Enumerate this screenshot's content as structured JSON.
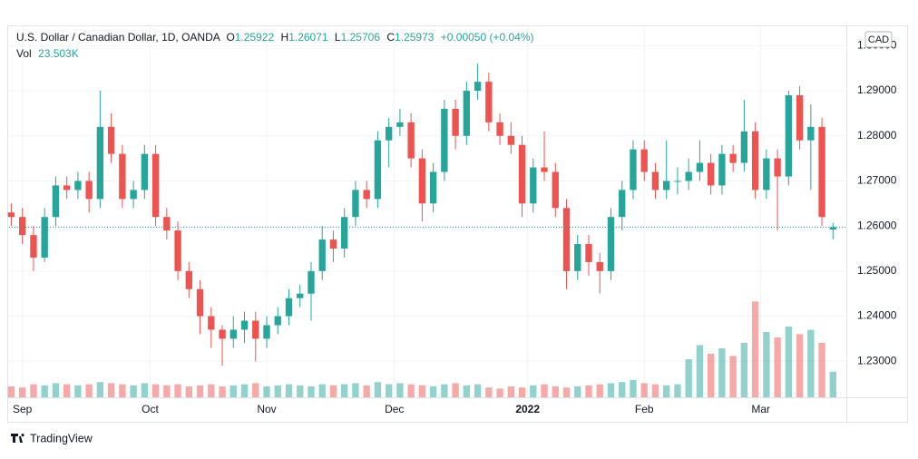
{
  "chart_data": {
    "type": "candlestick",
    "title": "U.S. Dollar / Canadian Dollar, 1D, OANDA",
    "legend": {
      "o": "O",
      "h": "H",
      "l": "L",
      "c": "C",
      "change": "+0.00050 (+0.04%)",
      "vol": "Vol"
    },
    "currency": "CAD",
    "up_color": "#26a69a",
    "down_color": "#ef5350",
    "ohlc": [
      [
        1.263,
        1.265,
        1.26,
        1.262
      ],
      [
        1.262,
        1.264,
        1.256,
        1.258
      ],
      [
        1.258,
        1.26,
        1.25,
        1.253
      ],
      [
        1.253,
        1.264,
        1.252,
        1.262
      ],
      [
        1.262,
        1.271,
        1.26,
        1.269
      ],
      [
        1.269,
        1.271,
        1.266,
        1.268
      ],
      [
        1.268,
        1.272,
        1.266,
        1.27
      ],
      [
        1.27,
        1.272,
        1.263,
        1.266
      ],
      [
        1.266,
        1.29,
        1.264,
        1.282
      ],
      [
        1.282,
        1.285,
        1.274,
        1.276
      ],
      [
        1.276,
        1.278,
        1.264,
        1.266
      ],
      [
        1.266,
        1.27,
        1.264,
        1.268
      ],
      [
        1.268,
        1.278,
        1.266,
        1.276
      ],
      [
        1.276,
        1.278,
        1.26,
        1.262
      ],
      [
        1.262,
        1.264,
        1.257,
        1.259
      ],
      [
        1.259,
        1.261,
        1.248,
        1.25
      ],
      [
        1.25,
        1.252,
        1.244,
        1.246
      ],
      [
        1.246,
        1.248,
        1.236,
        1.24
      ],
      [
        1.24,
        1.242,
        1.233,
        1.237
      ],
      [
        1.237,
        1.238,
        1.229,
        1.235
      ],
      [
        1.235,
        1.24,
        1.233,
        1.237
      ],
      [
        1.237,
        1.241,
        1.234,
        1.239
      ],
      [
        1.239,
        1.241,
        1.23,
        1.235
      ],
      [
        1.235,
        1.24,
        1.233,
        1.238
      ],
      [
        1.238,
        1.242,
        1.236,
        1.24
      ],
      [
        1.24,
        1.246,
        1.238,
        1.244
      ],
      [
        1.244,
        1.247,
        1.242,
        1.245
      ],
      [
        1.245,
        1.252,
        1.239,
        1.25
      ],
      [
        1.25,
        1.26,
        1.248,
        1.257
      ],
      [
        1.257,
        1.259,
        1.252,
        1.255
      ],
      [
        1.255,
        1.264,
        1.253,
        1.262
      ],
      [
        1.262,
        1.27,
        1.26,
        1.268
      ],
      [
        1.268,
        1.27,
        1.264,
        1.266
      ],
      [
        1.266,
        1.281,
        1.264,
        1.279
      ],
      [
        1.279,
        1.284,
        1.273,
        1.282
      ],
      [
        1.282,
        1.286,
        1.28,
        1.283
      ],
      [
        1.283,
        1.285,
        1.273,
        1.275
      ],
      [
        1.275,
        1.277,
        1.261,
        1.265
      ],
      [
        1.265,
        1.274,
        1.263,
        1.272
      ],
      [
        1.272,
        1.288,
        1.27,
        1.286
      ],
      [
        1.286,
        1.288,
        1.277,
        1.28
      ],
      [
        1.28,
        1.292,
        1.278,
        1.29
      ],
      [
        1.29,
        1.296,
        1.288,
        1.292
      ],
      [
        1.292,
        1.294,
        1.281,
        1.283
      ],
      [
        1.283,
        1.285,
        1.278,
        1.28
      ],
      [
        1.28,
        1.283,
        1.276,
        1.278
      ],
      [
        1.278,
        1.28,
        1.262,
        1.265
      ],
      [
        1.265,
        1.275,
        1.263,
        1.273
      ],
      [
        1.273,
        1.281,
        1.27,
        1.272
      ],
      [
        1.272,
        1.274,
        1.262,
        1.264
      ],
      [
        1.264,
        1.266,
        1.246,
        1.25
      ],
      [
        1.25,
        1.258,
        1.248,
        1.256
      ],
      [
        1.256,
        1.258,
        1.249,
        1.252
      ],
      [
        1.252,
        1.254,
        1.245,
        1.25
      ],
      [
        1.25,
        1.264,
        1.248,
        1.262
      ],
      [
        1.262,
        1.27,
        1.259,
        1.268
      ],
      [
        1.268,
        1.279,
        1.266,
        1.277
      ],
      [
        1.277,
        1.279,
        1.27,
        1.272
      ],
      [
        1.272,
        1.274,
        1.266,
        1.268
      ],
      [
        1.268,
        1.279,
        1.266,
        1.27
      ],
      [
        1.27,
        1.273,
        1.267,
        1.27
      ],
      [
        1.27,
        1.275,
        1.268,
        1.272
      ],
      [
        1.272,
        1.279,
        1.27,
        1.274
      ],
      [
        1.274,
        1.276,
        1.267,
        1.269
      ],
      [
        1.269,
        1.278,
        1.267,
        1.276
      ],
      [
        1.276,
        1.278,
        1.272,
        1.274
      ],
      [
        1.274,
        1.288,
        1.272,
        1.281
      ],
      [
        1.281,
        1.283,
        1.266,
        1.268
      ],
      [
        1.268,
        1.277,
        1.266,
        1.275
      ],
      [
        1.275,
        1.277,
        1.259,
        1.271
      ],
      [
        1.271,
        1.29,
        1.269,
        1.289
      ],
      [
        1.289,
        1.291,
        1.277,
        1.279
      ],
      [
        1.279,
        1.287,
        1.268,
        1.282
      ],
      [
        1.282,
        1.284,
        1.26,
        1.262
      ],
      [
        1.25922,
        1.26071,
        1.25706,
        1.25973
      ]
    ],
    "volume": [
      10,
      9,
      12,
      11,
      13,
      12,
      11,
      12,
      14,
      13,
      12,
      11,
      13,
      12,
      11,
      12,
      10,
      11,
      12,
      10,
      11,
      12,
      13,
      10,
      11,
      12,
      11,
      10,
      12,
      11,
      12,
      13,
      11,
      14,
      12,
      13,
      12,
      11,
      10,
      12,
      13,
      11,
      12,
      9,
      8,
      10,
      9,
      11,
      12,
      10,
      9,
      10,
      11,
      12,
      13,
      14,
      16,
      13,
      12,
      11,
      12,
      35,
      48,
      40,
      45,
      38,
      50,
      88,
      60,
      55,
      65,
      58,
      62,
      50,
      23.503
    ],
    "volume_label": "23.503K",
    "volume_lim": [
      0,
      100
    ],
    "xlim": [
      -0.2,
      75.2
    ],
    "xticks": [
      {
        "value": 1,
        "label": "Sep"
      },
      {
        "value": 12.5,
        "label": "Oct"
      },
      {
        "value": 23,
        "label": "Nov"
      },
      {
        "value": 34.5,
        "label": "Dec"
      },
      {
        "value": 46.5,
        "label": "2022"
      },
      {
        "value": 57,
        "label": "Feb"
      },
      {
        "value": 67.5,
        "label": "Mar"
      }
    ],
    "ylim": [
      1.222,
      1.3041
    ],
    "yticks": [
      {
        "value": 1.23,
        "label": "1.23000"
      },
      {
        "value": 1.24,
        "label": "1.24000"
      },
      {
        "value": 1.25,
        "label": "1.25000"
      },
      {
        "value": 1.26,
        "label": "1.26000"
      },
      {
        "value": 1.27,
        "label": "1.27000"
      },
      {
        "value": 1.28,
        "label": "1.28000"
      },
      {
        "value": 1.29,
        "label": "1.29000"
      },
      {
        "value": 1.3,
        "label": "1.30000"
      }
    ],
    "grid": true
  },
  "branding": "TradingView"
}
